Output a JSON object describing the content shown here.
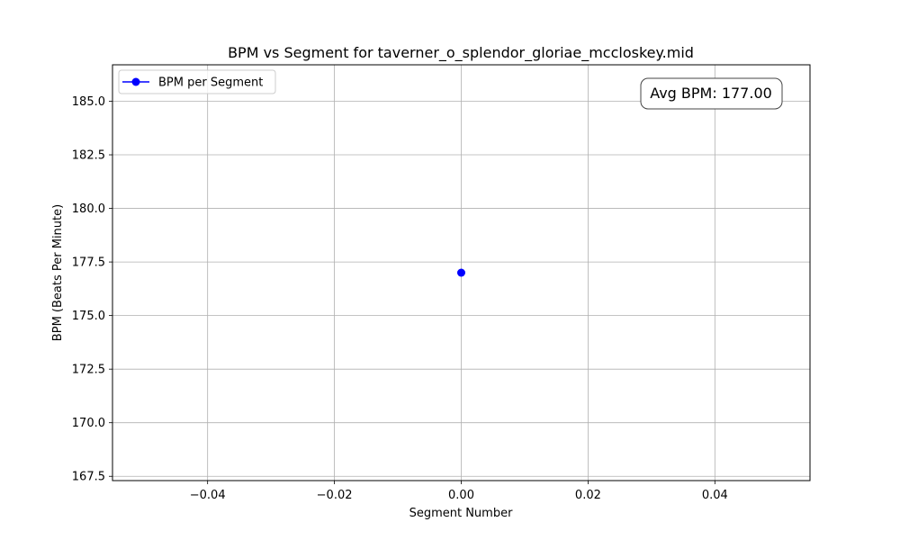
{
  "chart_data": {
    "type": "line",
    "title": "BPM vs Segment for taverner_o_splendor_gloriae_mccloskey.mid",
    "xlabel": "Segment Number",
    "ylabel": "BPM (Beats Per Minute)",
    "xlim": [
      -0.055,
      0.055
    ],
    "ylim": [
      167.3,
      186.7
    ],
    "xticks": [
      -0.04,
      -0.02,
      0.0,
      0.02,
      0.04
    ],
    "xtick_labels": [
      "−0.04",
      "−0.02",
      "0.00",
      "0.02",
      "0.04"
    ],
    "yticks": [
      167.5,
      170.0,
      172.5,
      175.0,
      177.5,
      180.0,
      182.5,
      185.0
    ],
    "ytick_labels": [
      "167.5",
      "170.0",
      "172.5",
      "175.0",
      "177.5",
      "180.0",
      "182.5",
      "185.0"
    ],
    "grid": true,
    "legend_position": "upper-left",
    "series": [
      {
        "name": "BPM per Segment",
        "color": "#0000ff",
        "marker": "circle",
        "x": [
          0
        ],
        "y": [
          177.0
        ]
      }
    ],
    "annotation": {
      "text": "Avg BPM: 177.00",
      "position": "upper-right"
    }
  }
}
